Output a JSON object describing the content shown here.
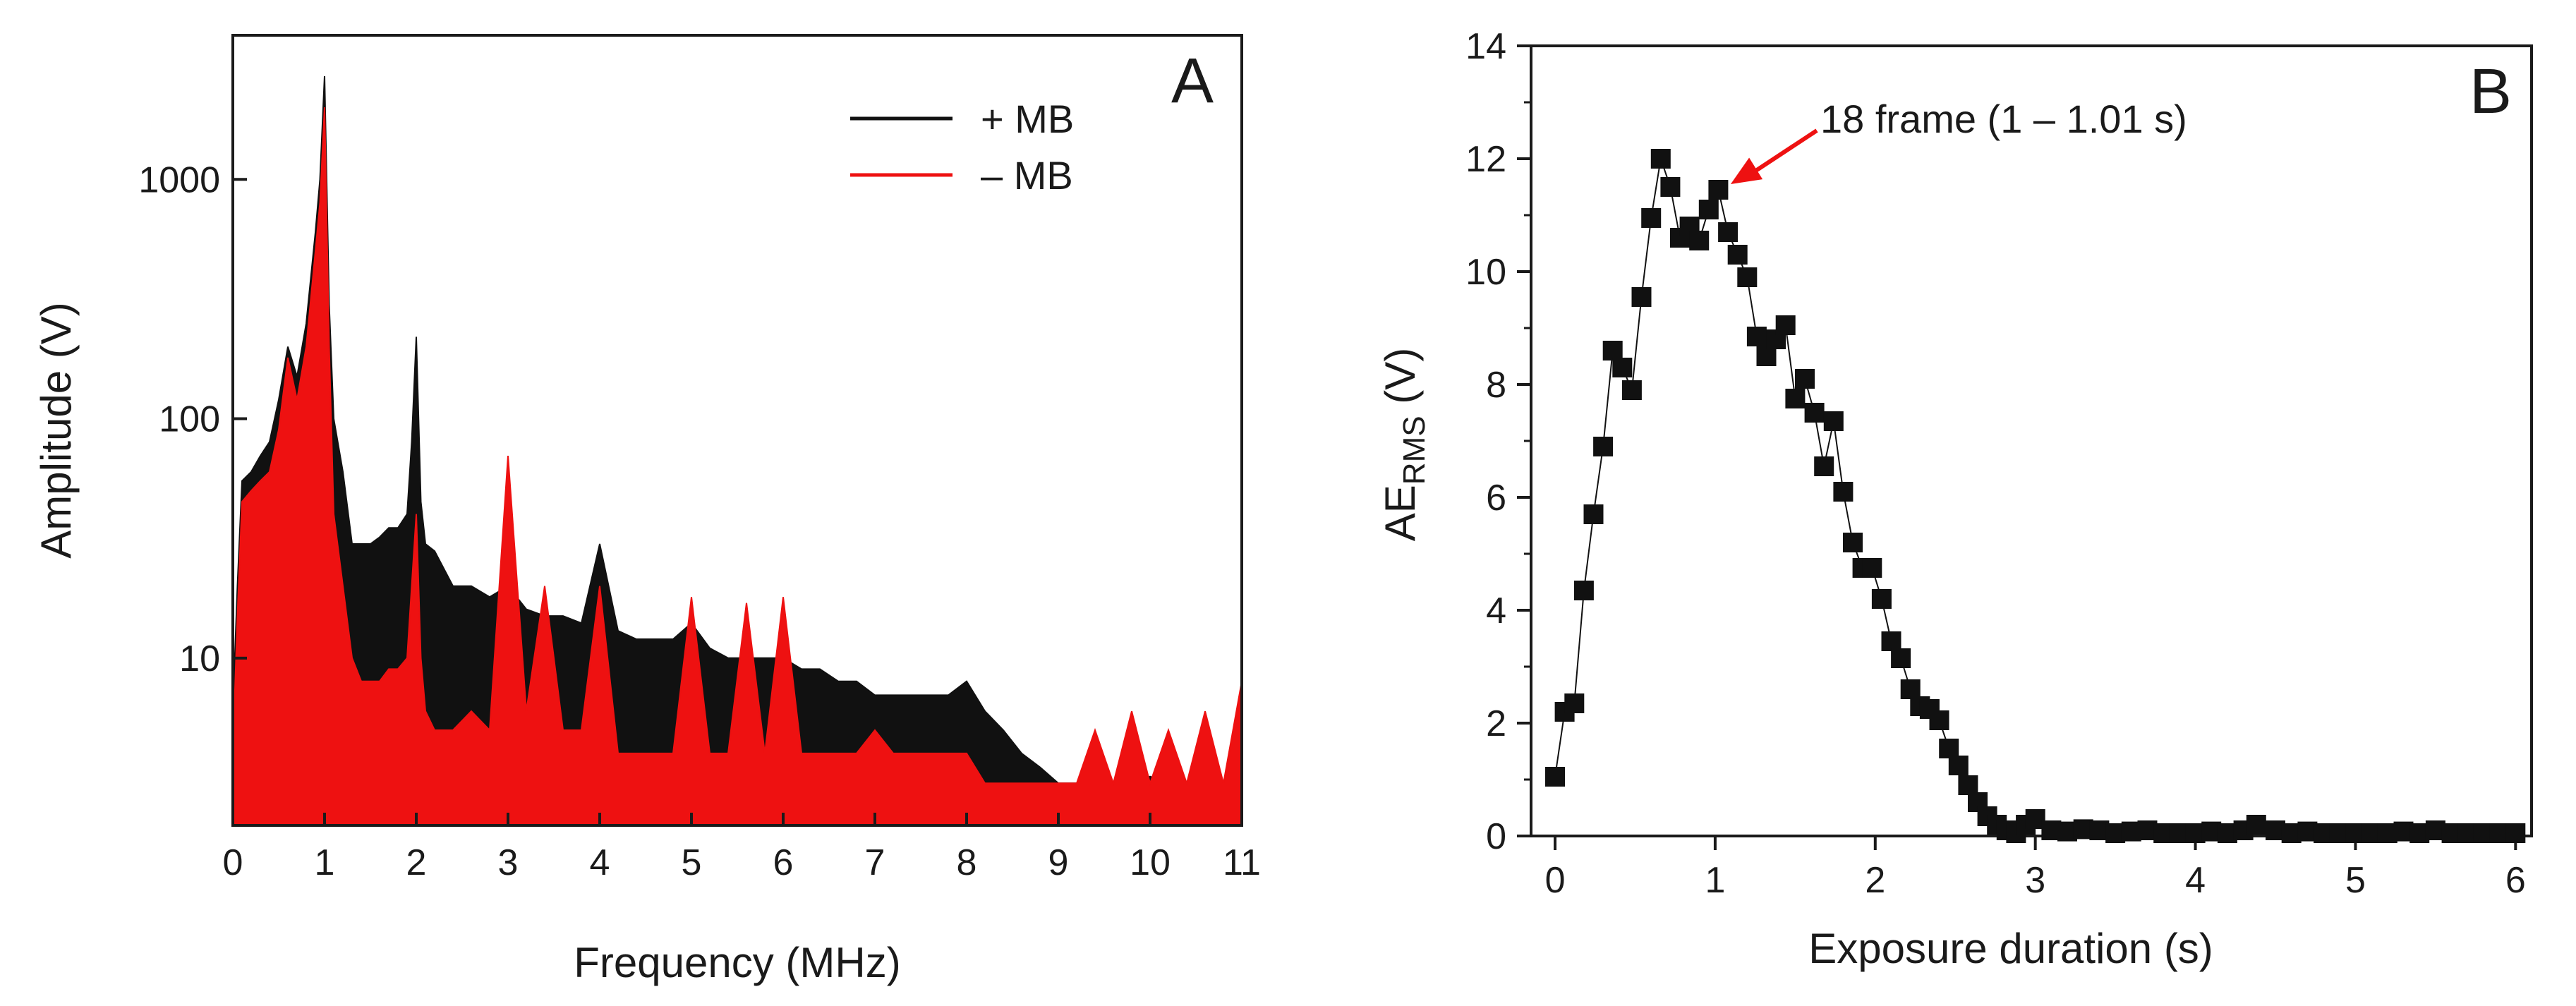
{
  "colors": {
    "plus_mb": "#111111",
    "minus_mb": "#ee1111",
    "markers": "#111111",
    "arrow": "#ee1111"
  },
  "chart_data": [
    {
      "type": "line",
      "panel_label": "A",
      "xlabel": "Frequency (MHz)",
      "ylabel": "Amplitude (V)",
      "xlim": [
        0,
        11
      ],
      "ylim": [
        2,
        4000
      ],
      "yscale": "log",
      "x_ticks": [
        0,
        1,
        2,
        3,
        4,
        5,
        6,
        7,
        8,
        9,
        10,
        11
      ],
      "x_tick_labels": [
        "0",
        "1",
        "2",
        "3",
        "4",
        "5",
        "6",
        "7",
        "8",
        "9",
        "10",
        "11"
      ],
      "y_ticks": [
        10,
        100,
        1000
      ],
      "y_tick_labels": [
        "10",
        "100",
        "1000"
      ],
      "legend_position": "top-right",
      "grid": false,
      "series": [
        {
          "name": "+ MB",
          "x": [
            0,
            0.05,
            0.1,
            0.2,
            0.3,
            0.4,
            0.5,
            0.6,
            0.7,
            0.8,
            0.9,
            0.95,
            1.0,
            1.05,
            1.1,
            1.2,
            1.3,
            1.4,
            1.5,
            1.6,
            1.7,
            1.8,
            1.9,
            1.95,
            2.0,
            2.05,
            2.1,
            2.2,
            2.4,
            2.6,
            2.8,
            3.0,
            3.2,
            3.4,
            3.6,
            3.8,
            4.0,
            4.2,
            4.4,
            4.6,
            4.8,
            5.0,
            5.2,
            5.4,
            5.6,
            5.8,
            6.0,
            6.2,
            6.4,
            6.6,
            6.8,
            7.0,
            7.2,
            7.4,
            7.6,
            7.8,
            8.0,
            8.2,
            8.4,
            8.6,
            8.8,
            9.0,
            9.2,
            9.4,
            9.6,
            9.8,
            10.0,
            10.2,
            10.4,
            10.6,
            10.8,
            11.0
          ],
          "y": [
            6,
            20,
            55,
            60,
            70,
            80,
            120,
            200,
            150,
            250,
            600,
            1000,
            2700,
            300,
            100,
            60,
            30,
            30,
            30,
            32,
            35,
            35,
            40,
            80,
            220,
            45,
            30,
            28,
            20,
            20,
            18,
            20,
            16,
            15,
            15,
            14,
            30,
            13,
            12,
            12,
            12,
            14,
            11,
            10,
            10,
            10,
            10,
            9,
            9,
            8,
            8,
            7,
            7,
            7,
            7,
            7,
            8,
            6,
            5,
            4,
            3.5,
            3,
            3,
            3,
            3,
            3,
            3.2,
            3,
            3,
            3,
            3,
            3
          ]
        },
        {
          "name": "– MB",
          "x": [
            0,
            0.05,
            0.1,
            0.2,
            0.3,
            0.4,
            0.5,
            0.6,
            0.7,
            0.8,
            0.9,
            0.95,
            1.0,
            1.05,
            1.1,
            1.2,
            1.3,
            1.4,
            1.5,
            1.6,
            1.7,
            1.8,
            1.9,
            1.95,
            2.0,
            2.05,
            2.1,
            2.2,
            2.4,
            2.6,
            2.8,
            3.0,
            3.2,
            3.4,
            3.6,
            3.8,
            4.0,
            4.2,
            4.4,
            4.6,
            4.8,
            5.0,
            5.2,
            5.4,
            5.6,
            5.8,
            6.0,
            6.2,
            6.4,
            6.6,
            6.8,
            7.0,
            7.2,
            7.4,
            7.6,
            7.8,
            8.0,
            8.2,
            8.4,
            8.6,
            8.8,
            9.0,
            9.2,
            9.4,
            9.6,
            9.8,
            10.0,
            10.2,
            10.4,
            10.6,
            10.8,
            11.0
          ],
          "y": [
            4,
            15,
            45,
            50,
            55,
            60,
            90,
            180,
            120,
            200,
            500,
            800,
            2000,
            200,
            40,
            20,
            10,
            8,
            8,
            8,
            9,
            9,
            10,
            20,
            40,
            10,
            6,
            5,
            5,
            6,
            5,
            70,
            6,
            20,
            5,
            5,
            20,
            4,
            4,
            4,
            4,
            18,
            4,
            4,
            17,
            4,
            18,
            4,
            4,
            4,
            4,
            5,
            4,
            4,
            4,
            4,
            4,
            3,
            3,
            3,
            3,
            3,
            3,
            5,
            3,
            6,
            3,
            5,
            3,
            6,
            3,
            8
          ]
        }
      ]
    },
    {
      "type": "scatter",
      "panel_label": "B",
      "xlabel": "Exposure duration (s)",
      "ylabel_main": "AE",
      "ylabel_sub": "RMS",
      "ylabel_unit": " (V)",
      "xlim": [
        -0.15,
        6.1
      ],
      "ylim": [
        0,
        14
      ],
      "x_ticks": [
        0,
        1,
        2,
        3,
        4,
        5,
        6
      ],
      "x_tick_labels": [
        "0",
        "1",
        "2",
        "3",
        "4",
        "5",
        "6"
      ],
      "y_ticks": [
        0,
        2,
        4,
        6,
        8,
        10,
        12,
        14
      ],
      "y_tick_labels": [
        "0",
        "2",
        "4",
        "6",
        "8",
        "10",
        "12",
        "14"
      ],
      "grid": false,
      "annotation": {
        "text": "18 frame (1 – 1.01 s)",
        "x": 1.0,
        "y": 11.45
      },
      "series": [
        {
          "x": [
            0.0,
            0.06,
            0.12,
            0.18,
            0.24,
            0.3,
            0.36,
            0.42,
            0.48,
            0.54,
            0.6,
            0.66,
            0.72,
            0.78,
            0.84,
            0.9,
            0.96,
            1.02,
            1.08,
            1.14,
            1.2,
            1.26,
            1.32,
            1.38,
            1.44,
            1.5,
            1.56,
            1.62,
            1.68,
            1.74,
            1.8,
            1.86,
            1.92,
            1.98,
            2.04,
            2.1,
            2.16,
            2.22,
            2.28,
            2.34,
            2.4,
            2.46,
            2.52,
            2.58,
            2.64,
            2.7,
            2.76,
            2.82,
            2.88,
            2.94,
            3.0,
            3.1,
            3.2,
            3.3,
            3.4,
            3.5,
            3.6,
            3.7,
            3.8,
            3.9,
            4.0,
            4.1,
            4.2,
            4.3,
            4.38,
            4.5,
            4.6,
            4.7,
            4.8,
            4.9,
            5.0,
            5.1,
            5.2,
            5.3,
            5.4,
            5.5,
            5.6,
            5.7,
            5.8,
            5.9,
            6.0
          ],
          "y": [
            1.05,
            2.2,
            2.35,
            4.35,
            5.7,
            6.9,
            8.6,
            8.3,
            7.9,
            9.55,
            10.95,
            12.0,
            11.5,
            10.6,
            10.8,
            10.55,
            11.1,
            11.45,
            10.7,
            10.3,
            9.9,
            8.85,
            8.5,
            8.8,
            9.05,
            7.75,
            8.1,
            7.5,
            6.55,
            7.35,
            6.1,
            5.2,
            4.75,
            4.75,
            4.2,
            3.45,
            3.15,
            2.6,
            2.3,
            2.25,
            2.05,
            1.55,
            1.25,
            0.9,
            0.6,
            0.35,
            0.2,
            0.1,
            0.05,
            0.2,
            0.3,
            0.1,
            0.08,
            0.12,
            0.1,
            0.05,
            0.08,
            0.1,
            0.05,
            0.05,
            0.05,
            0.08,
            0.05,
            0.1,
            0.2,
            0.1,
            0.05,
            0.08,
            0.05,
            0.05,
            0.05,
            0.05,
            0.05,
            0.08,
            0.05,
            0.1,
            0.05,
            0.05,
            0.05,
            0.05,
            0.05
          ]
        }
      ]
    }
  ]
}
